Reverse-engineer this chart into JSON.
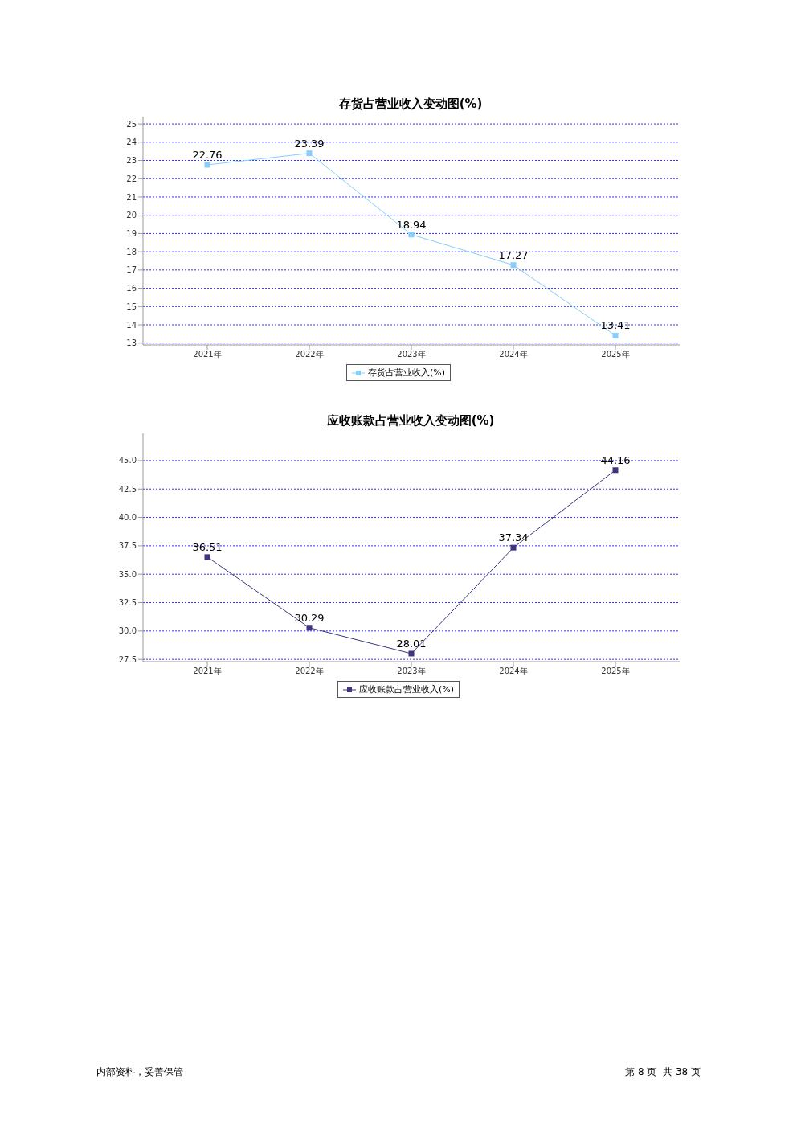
{
  "chart_data": [
    {
      "type": "line",
      "title": "存货占营业收入变动图(%)",
      "categories": [
        "2021年",
        "2022年",
        "2023年",
        "2024年",
        "2025年"
      ],
      "series": [
        {
          "name": "存货占营业收入(%)",
          "color": "#87cefa",
          "values": [
            22.76,
            23.39,
            18.94,
            17.27,
            13.41
          ]
        }
      ],
      "ylim": [
        12.9,
        25.4
      ],
      "yticks": [
        13,
        14,
        15,
        16,
        17,
        18,
        19,
        20,
        21,
        22,
        23,
        24,
        25
      ],
      "grid": "y",
      "legend": "bottom",
      "marker": "square",
      "data_labels": true
    },
    {
      "type": "line",
      "title": "应收账款占营业收入变动图(%)",
      "categories": [
        "2021年",
        "2022年",
        "2023年",
        "2024年",
        "2025年"
      ],
      "series": [
        {
          "name": "应收账款占营业收入(%)",
          "color": "#3d3580",
          "values": [
            36.51,
            30.29,
            28.01,
            37.34,
            44.16
          ]
        }
      ],
      "ylim": [
        27.3,
        47.4
      ],
      "yticks": [
        27.5,
        {
          "value": 30,
          "label": "30.0"
        },
        32.5,
        {
          "value": 35,
          "label": "35.0"
        },
        37.5,
        {
          "value": 40,
          "label": "40.0"
        },
        42.5,
        {
          "value": 45,
          "label": "45.0"
        }
      ],
      "grid": "y",
      "legend": "bottom",
      "marker": "square",
      "data_labels": true,
      "annotations": [
        "内部资料，妥善保管",
        "第 8 页  共 38 页"
      ]
    }
  ]
}
